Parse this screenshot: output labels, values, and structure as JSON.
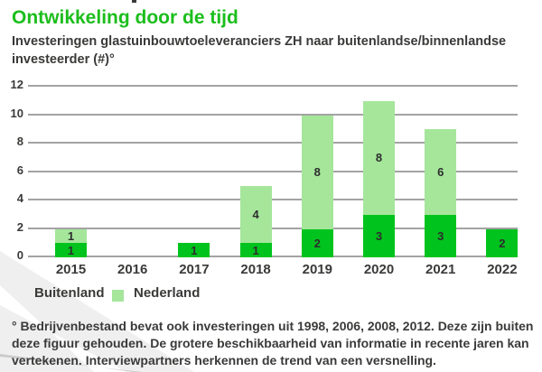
{
  "header": {
    "title": "Ontwikkeling door de tijd",
    "subtitle_lines": [
      "Investeringen glastuinbouwtoeleveranciers ZH naar buitenlandse/binnenlandse",
      "investeerder (#)°"
    ]
  },
  "chart_data": {
    "type": "bar",
    "stacked": true,
    "title": "Investeringen glastuinbouwtoeleveranciers ZH naar buitenlandse/binnenlandse investeerder (#)",
    "categories": [
      "2015",
      "2016",
      "2017",
      "2018",
      "2019",
      "2020",
      "2021",
      "2022"
    ],
    "series": [
      {
        "name": "Buitenland",
        "color": "#00c31d",
        "values": [
          1,
          0,
          1,
          1,
          2,
          3,
          3,
          2
        ]
      },
      {
        "name": "Nederland",
        "color": "#a5e69b",
        "values": [
          1,
          0,
          0,
          4,
          8,
          8,
          6,
          0
        ]
      }
    ],
    "ylim": [
      0,
      12
    ],
    "yticks": [
      0,
      2,
      4,
      6,
      8,
      10,
      12
    ],
    "grid": true,
    "value_labels": "inside-segments",
    "legend_position": "bottom"
  },
  "legend": {
    "items": [
      {
        "label": "Buitenland",
        "color": "#00c31d",
        "swatch_visible": false
      },
      {
        "label": "Nederland",
        "color": "#a5e69b",
        "swatch_visible": true
      }
    ]
  },
  "footnote": {
    "lines": [
      "°  Bedrijvenbestand bevat ook investeringen uit 1998, 2006, 2008, 2012. Deze zijn buiten",
      "deze figuur gehouden. De grotere beschikbaarheid van informatie in recente jaren kan",
      "vertekenen. Interviewpartners herkennen de trend van een versnelling."
    ]
  },
  "colors": {
    "title_green": "#1cbe1c",
    "buitenland_green": "#00c31d",
    "nederland_green": "#a5e69b",
    "text_dark": "#3a3a39",
    "gridline_gray": "#a3a3a3"
  }
}
